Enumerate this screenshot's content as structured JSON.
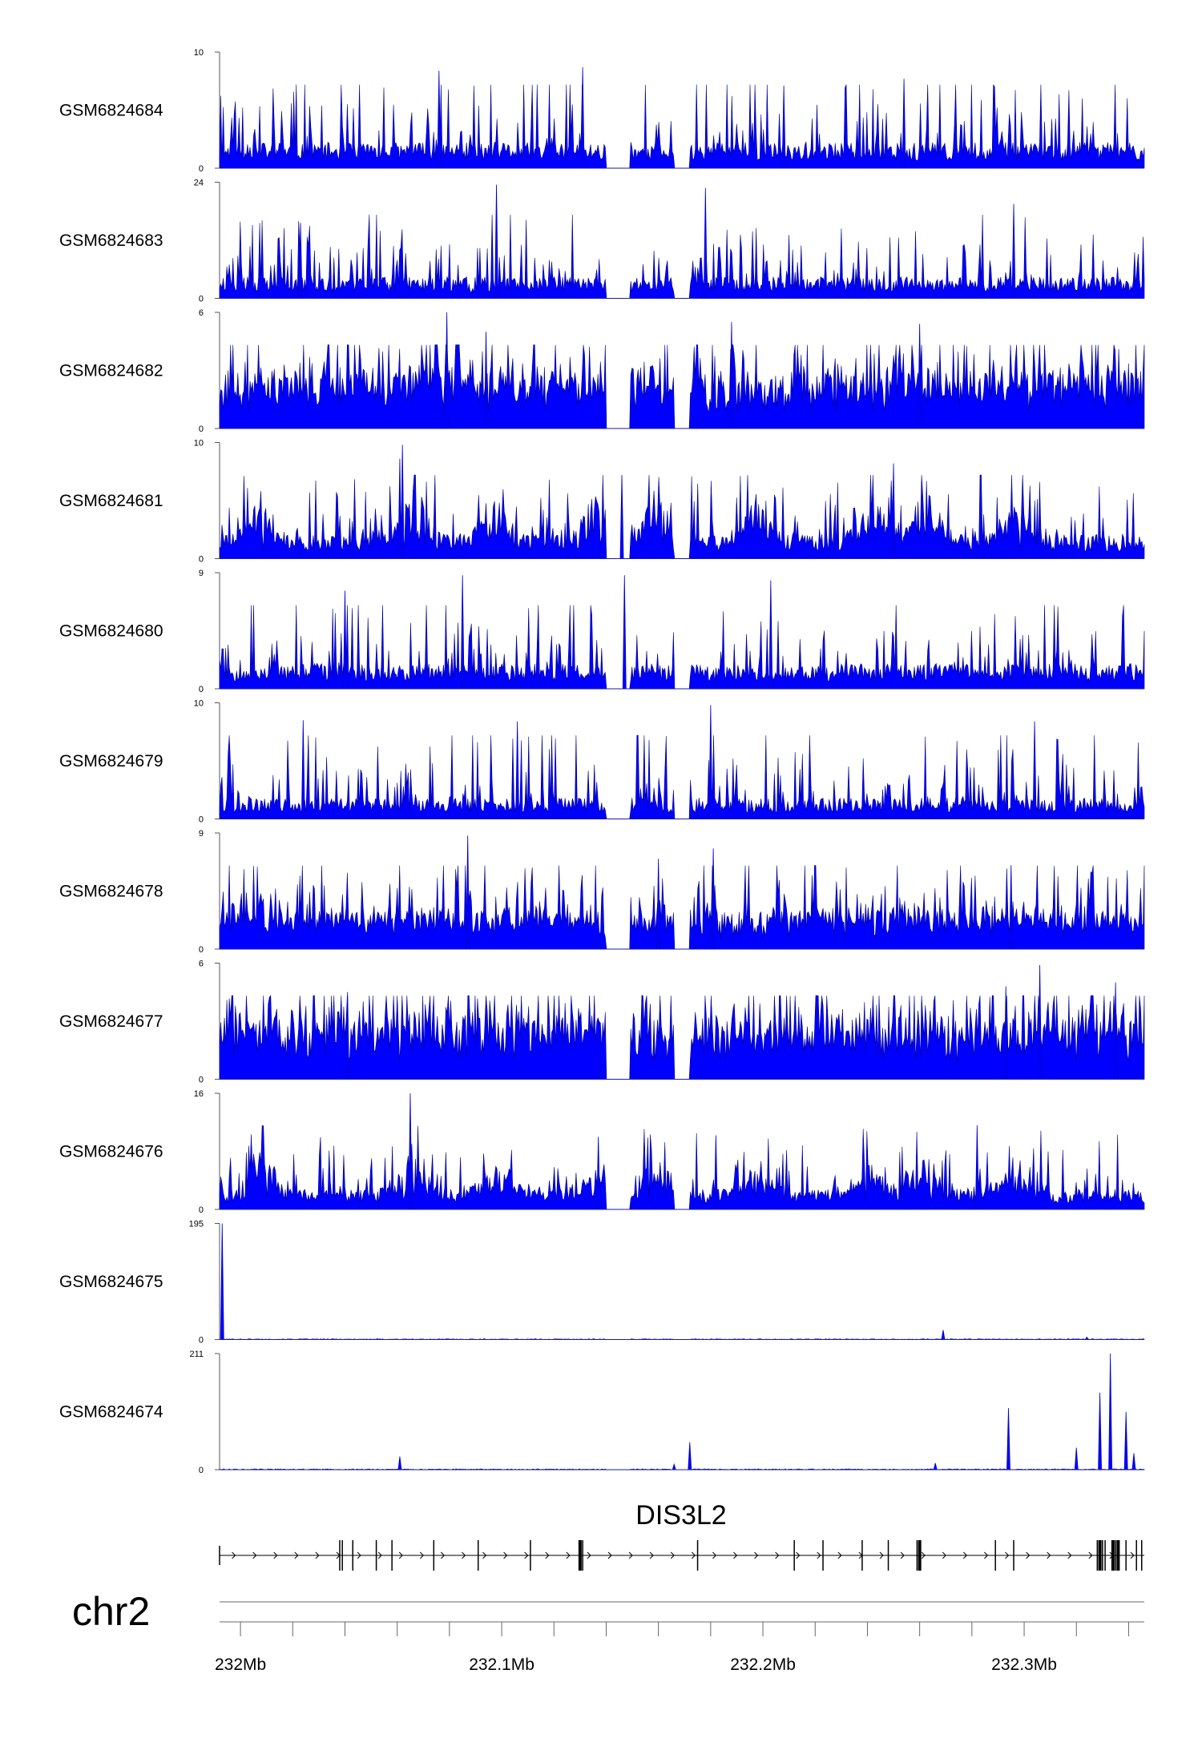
{
  "chart_data": {
    "type": "area",
    "chromosome": "chr2",
    "x_unit": "Mb",
    "xlim": [
      231.992,
      232.346
    ],
    "x_ticks_major": [
      232.0,
      232.1,
      232.2,
      232.3
    ],
    "x_tick_labels": [
      "232Mb",
      "232.1Mb",
      "232.2Mb",
      "232.3Mb"
    ],
    "x_ticks_minor": [
      231.98,
      232.02,
      232.04,
      232.06,
      232.08,
      232.12,
      232.14,
      232.16,
      232.18,
      232.22,
      232.24,
      232.26,
      232.28,
      232.32,
      232.34
    ],
    "series_color": "#0000ff",
    "tracks": [
      {
        "name": "GSM6824684",
        "ymax": 10,
        "ylim": [
          0,
          10
        ],
        "ytick_labels": [
          "10",
          "0"
        ],
        "profile": "sparse",
        "seed": 11,
        "base": 1.6,
        "spike": 6.5,
        "rate": 0.22,
        "peaks": [
          {
            "x": 232.076,
            "y": 8.4
          },
          {
            "x": 232.131,
            "y": 8.7
          },
          {
            "x": 232.208,
            "y": 7.1
          },
          {
            "x": 232.254,
            "y": 7.7
          }
        ]
      },
      {
        "name": "GSM6824683",
        "ymax": 24,
        "ylim": [
          0,
          24
        ],
        "ytick_labels": [
          "24",
          "0"
        ],
        "profile": "spiky",
        "seed": 23,
        "base": 3.2,
        "spike": 14,
        "rate": 0.12,
        "peaks": [
          {
            "x": 232.098,
            "y": 23.5
          },
          {
            "x": 232.178,
            "y": 22.8
          },
          {
            "x": 232.296,
            "y": 19.5
          },
          {
            "x": 232.023,
            "y": 15.6
          }
        ]
      },
      {
        "name": "GSM6824682",
        "ymax": 6,
        "ylim": [
          0,
          6
        ],
        "ytick_labels": [
          "6",
          "0"
        ],
        "profile": "dense",
        "seed": 37,
        "base": 1.8,
        "spike": 3.8,
        "rate": 0.25,
        "peaks": [
          {
            "x": 232.079,
            "y": 6.0
          },
          {
            "x": 232.094,
            "y": 5.0
          },
          {
            "x": 232.188,
            "y": 5.5
          },
          {
            "x": 232.26,
            "y": 5.4
          }
        ]
      },
      {
        "name": "GSM6824681",
        "ymax": 10,
        "ylim": [
          0,
          10
        ],
        "ytick_labels": [
          "10",
          "0"
        ],
        "profile": "clustered",
        "seed": 41,
        "base": 1.5,
        "spike": 5.2,
        "rate": 0.22,
        "peaks": [
          {
            "x": 232.062,
            "y": 9.8
          },
          {
            "x": 232.061,
            "y": 8.6
          },
          {
            "x": 232.146,
            "y": 7.2
          },
          {
            "x": 232.25,
            "y": 8.2
          }
        ]
      },
      {
        "name": "GSM6824680",
        "ymax": 9,
        "ylim": [
          0,
          9
        ],
        "ytick_labels": [
          "9",
          "0"
        ],
        "profile": "sparse",
        "seed": 53,
        "base": 1.4,
        "spike": 5.6,
        "rate": 0.2,
        "peaks": [
          {
            "x": 232.085,
            "y": 8.8
          },
          {
            "x": 232.147,
            "y": 8.8
          },
          {
            "x": 232.203,
            "y": 8.4
          },
          {
            "x": 232.04,
            "y": 7.6
          }
        ]
      },
      {
        "name": "GSM6824679",
        "ymax": 10,
        "ylim": [
          0,
          10
        ],
        "ytick_labels": [
          "10",
          "0"
        ],
        "profile": "sparse",
        "seed": 67,
        "base": 1.3,
        "spike": 6.0,
        "rate": 0.2,
        "peaks": [
          {
            "x": 232.024,
            "y": 8.5
          },
          {
            "x": 232.106,
            "y": 8.4
          },
          {
            "x": 232.18,
            "y": 9.8
          },
          {
            "x": 232.304,
            "y": 8.4
          }
        ]
      },
      {
        "name": "GSM6824678",
        "ymax": 9,
        "ylim": [
          0,
          9
        ],
        "ytick_labels": [
          "9",
          "0"
        ],
        "profile": "dense",
        "seed": 71,
        "base": 1.8,
        "spike": 4.6,
        "rate": 0.24,
        "peaks": [
          {
            "x": 232.087,
            "y": 8.8
          },
          {
            "x": 232.181,
            "y": 7.8
          },
          {
            "x": 232.295,
            "y": 6.5
          },
          {
            "x": 232.16,
            "y": 7.0
          }
        ]
      },
      {
        "name": "GSM6824677",
        "ymax": 6,
        "ylim": [
          0,
          6
        ],
        "ytick_labels": [
          "6",
          "0"
        ],
        "profile": "dense",
        "seed": 83,
        "base": 1.9,
        "spike": 3.5,
        "rate": 0.28,
        "peaks": [
          {
            "x": 232.306,
            "y": 5.9
          },
          {
            "x": 232.293,
            "y": 4.8
          },
          {
            "x": 232.041,
            "y": 4.5
          },
          {
            "x": 232.335,
            "y": 5.0
          }
        ]
      },
      {
        "name": "GSM6824676",
        "ymax": 16,
        "ylim": [
          0,
          16
        ],
        "ytick_labels": [
          "16",
          "0"
        ],
        "profile": "clustered",
        "seed": 97,
        "base": 2.0,
        "spike": 6.5,
        "rate": 0.2,
        "peaks": [
          {
            "x": 232.065,
            "y": 16.0
          },
          {
            "x": 232.137,
            "y": 10.0
          },
          {
            "x": 232.182,
            "y": 10.2
          },
          {
            "x": 232.282,
            "y": 11.6
          }
        ]
      },
      {
        "name": "GSM6824675",
        "ymax": 195,
        "ylim": [
          0,
          195
        ],
        "ytick_labels": [
          "195",
          "0"
        ],
        "profile": "flat",
        "seed": 101,
        "base": 1.2,
        "spike": 2.0,
        "rate": 0.05,
        "peaks": [
          {
            "x": 231.993,
            "y": 195
          },
          {
            "x": 232.269,
            "y": 16
          },
          {
            "x": 232.324,
            "y": 4
          }
        ]
      },
      {
        "name": "GSM6824674",
        "ymax": 211,
        "ylim": [
          0,
          211
        ],
        "ytick_labels": [
          "211",
          "0"
        ],
        "profile": "flat",
        "seed": 113,
        "base": 1.5,
        "spike": 3.0,
        "rate": 0.05,
        "peaks": [
          {
            "x": 232.061,
            "y": 24
          },
          {
            "x": 232.172,
            "y": 50
          },
          {
            "x": 232.166,
            "y": 10
          },
          {
            "x": 232.266,
            "y": 12
          },
          {
            "x": 232.294,
            "y": 112
          },
          {
            "x": 232.32,
            "y": 40
          },
          {
            "x": 232.333,
            "y": 211
          },
          {
            "x": 232.329,
            "y": 140
          },
          {
            "x": 232.339,
            "y": 105
          },
          {
            "x": 232.342,
            "y": 30
          }
        ]
      }
    ],
    "gene": {
      "name": "DIS3L2",
      "strand": "+",
      "start": 231.992,
      "end": 232.346,
      "exons": [
        232.038,
        232.039,
        232.043,
        232.052,
        232.058,
        232.074,
        232.091,
        232.111,
        232.13,
        232.131,
        232.175,
        232.212,
        232.223,
        232.238,
        232.248,
        232.259,
        232.26,
        232.289,
        232.296,
        232.328,
        232.329,
        232.33,
        232.331,
        232.334,
        232.335,
        232.336,
        232.339,
        232.343,
        232.345
      ],
      "thick_exons": [
        232.13,
        232.26,
        232.329,
        232.334,
        232.336
      ]
    }
  }
}
